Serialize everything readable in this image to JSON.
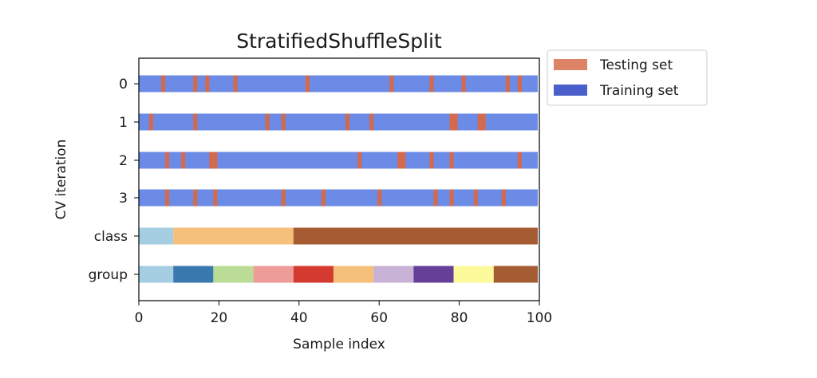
{
  "chart_data": {
    "type": "bar",
    "title": "StratifiedShuffleSplit",
    "xlabel": "Sample index",
    "ylabel": "CV iteration",
    "xlim": [
      0,
      100
    ],
    "xticks": [
      0,
      20,
      40,
      60,
      80,
      100
    ],
    "row_labels": [
      "0",
      "1",
      "2",
      "3",
      "class",
      "group"
    ],
    "n_samples": 100,
    "legend": {
      "placement": "outside-top-right",
      "entries": [
        {
          "label": "Testing set",
          "color": "#dd8467"
        },
        {
          "label": "Training set",
          "color": "#4a5fca"
        }
      ]
    },
    "colors": {
      "train": "#6b8be6",
      "test": "#d4694b"
    },
    "splits": [
      {
        "iteration": 0,
        "test_indices": [
          6,
          14,
          17,
          24,
          42,
          63,
          73,
          81,
          92,
          95
        ]
      },
      {
        "iteration": 1,
        "test_indices": [
          3,
          14,
          32,
          36,
          52,
          58,
          78,
          79,
          85,
          86
        ]
      },
      {
        "iteration": 2,
        "test_indices": [
          7,
          11,
          18,
          19,
          55,
          65,
          66,
          73,
          78,
          95
        ]
      },
      {
        "iteration": 3,
        "test_indices": [
          7,
          14,
          19,
          36,
          46,
          60,
          74,
          78,
          84,
          91
        ]
      }
    ],
    "class_ranges": [
      {
        "class": 0,
        "start": 0,
        "end": 8,
        "color": "#a6cee3"
      },
      {
        "class": 1,
        "start": 9,
        "end": 38,
        "color": "#f4c07a"
      },
      {
        "class": 2,
        "start": 39,
        "end": 99,
        "color": "#a65c32"
      }
    ],
    "group_ranges": [
      {
        "group": 0,
        "start": 0,
        "end": 8,
        "color": "#a6cee3"
      },
      {
        "group": 1,
        "start": 9,
        "end": 18,
        "color": "#3a78b0"
      },
      {
        "group": 2,
        "start": 19,
        "end": 28,
        "color": "#bbdc96"
      },
      {
        "group": 3,
        "start": 29,
        "end": 38,
        "color": "#ee9c9a"
      },
      {
        "group": 4,
        "start": 39,
        "end": 48,
        "color": "#d43a2f"
      },
      {
        "group": 5,
        "start": 49,
        "end": 58,
        "color": "#f4c07a"
      },
      {
        "group": 6,
        "start": 59,
        "end": 68,
        "color": "#c8b2d6"
      },
      {
        "group": 7,
        "start": 69,
        "end": 78,
        "color": "#663f98"
      },
      {
        "group": 8,
        "start": 79,
        "end": 88,
        "color": "#fdfa9b"
      },
      {
        "group": 9,
        "start": 89,
        "end": 99,
        "color": "#a65c32"
      }
    ]
  }
}
